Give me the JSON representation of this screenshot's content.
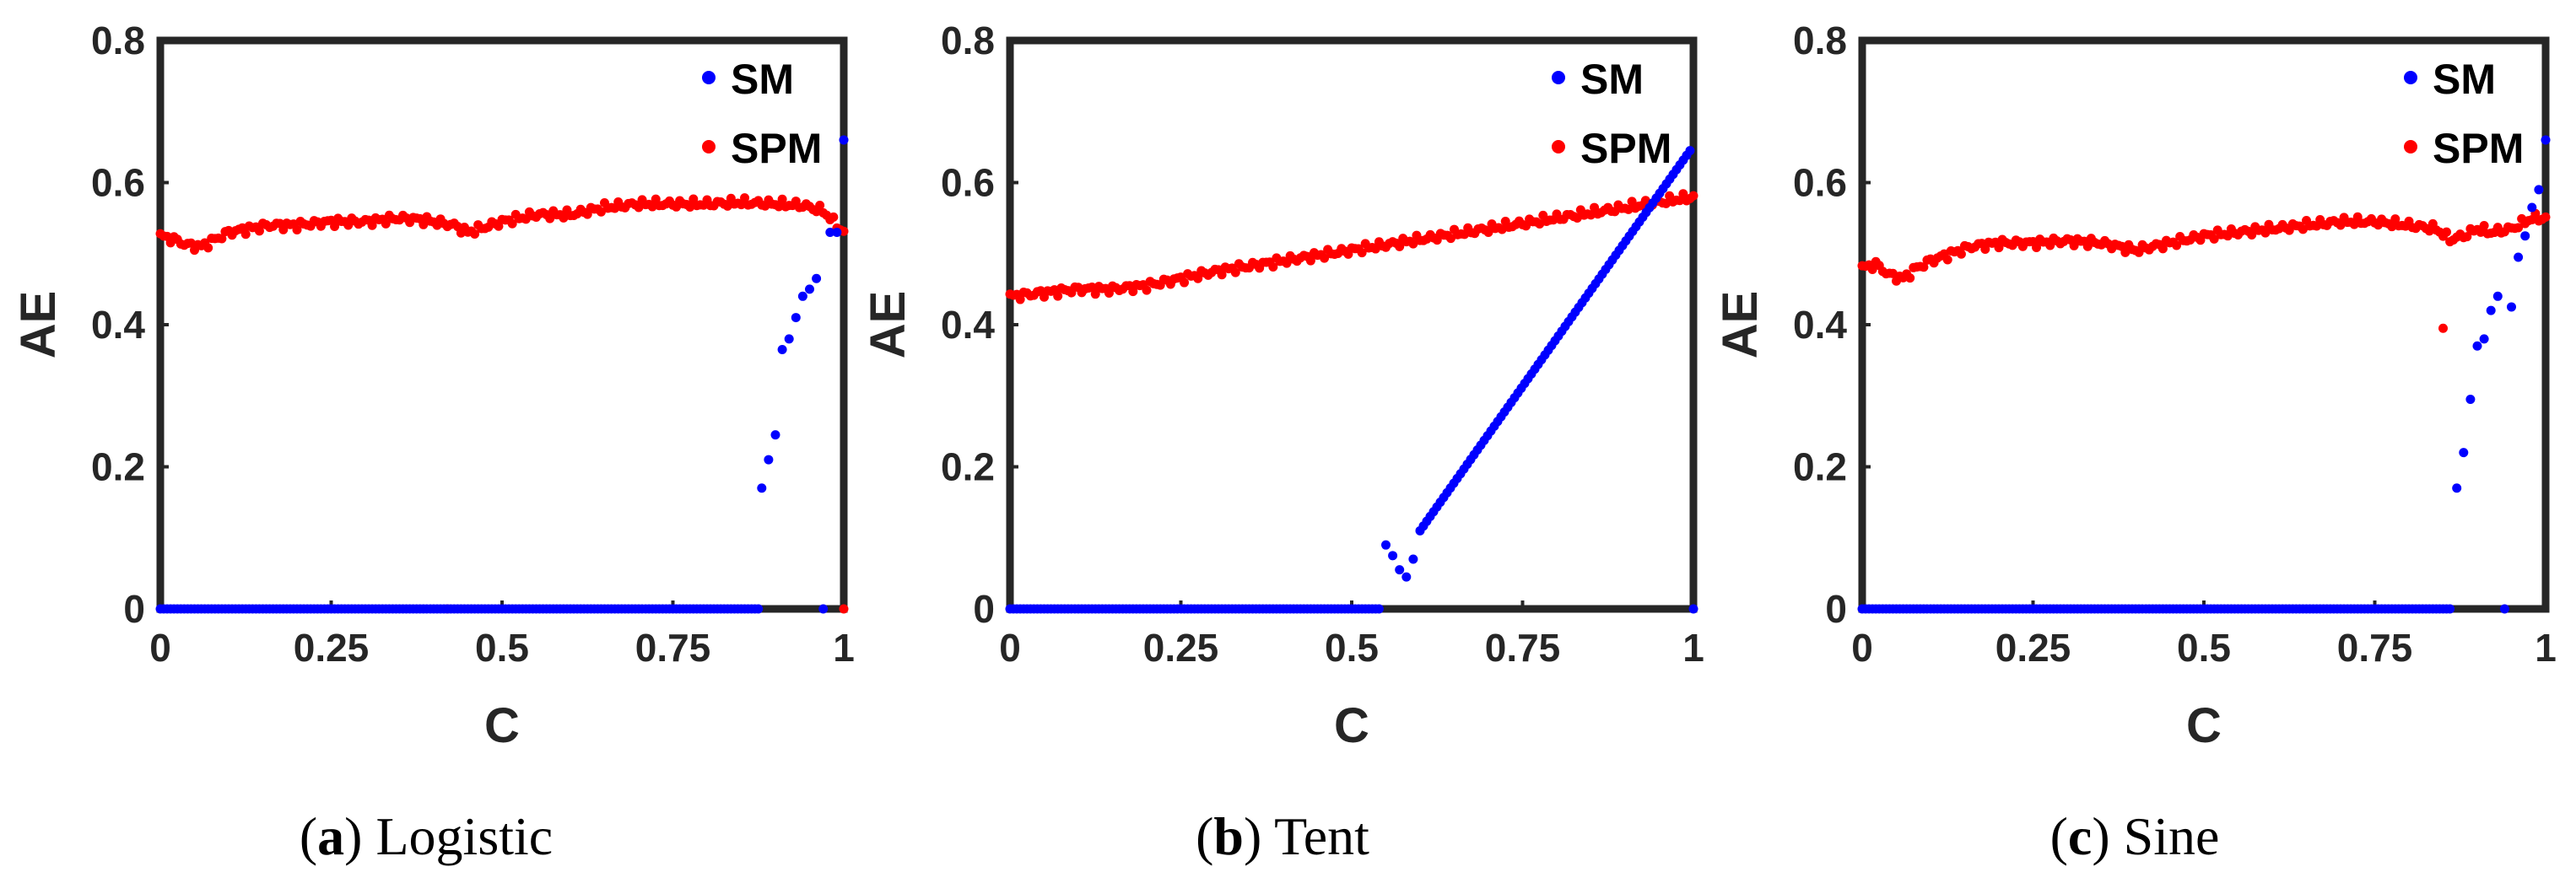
{
  "colors": {
    "SM": "#0000ff",
    "SPM": "#ff0000",
    "axis": "#262626"
  },
  "chart_data": [
    {
      "type": "scatter",
      "caption": {
        "letter": "a",
        "name": "Logistic"
      },
      "xlabel": "C",
      "ylabel": "AE",
      "xlim": [
        0,
        1
      ],
      "ylim": [
        0,
        0.8
      ],
      "xticks": [
        "0",
        "0.25",
        "0.5",
        "0.75",
        "1"
      ],
      "yticks": [
        "0",
        "0.2",
        "0.4",
        "0.6",
        "0.8"
      ],
      "legend": "top-right",
      "series": [
        {
          "name": "SM",
          "zero_range": [
            0,
            0.875
          ],
          "points": [
            [
              0.88,
              0.17
            ],
            [
              0.89,
              0.21
            ],
            [
              0.9,
              0.245
            ],
            [
              0.91,
              0.365
            ],
            [
              0.92,
              0.38
            ],
            [
              0.93,
              0.41
            ],
            [
              0.94,
              0.44
            ],
            [
              0.95,
              0.45
            ],
            [
              0.96,
              0.465
            ],
            [
              0.97,
              0.0
            ],
            [
              0.98,
              0.53
            ],
            [
              0.99,
              0.53
            ],
            [
              1.0,
              0.66
            ]
          ]
        },
        {
          "name": "SPM",
          "anchors": [
            [
              0,
              0.525
            ],
            [
              0.02,
              0.52
            ],
            [
              0.04,
              0.512
            ],
            [
              0.06,
              0.51
            ],
            [
              0.08,
              0.52
            ],
            [
              0.1,
              0.53
            ],
            [
              0.13,
              0.535
            ],
            [
              0.16,
              0.54
            ],
            [
              0.2,
              0.54
            ],
            [
              0.25,
              0.545
            ],
            [
              0.3,
              0.545
            ],
            [
              0.35,
              0.55
            ],
            [
              0.38,
              0.548
            ],
            [
              0.4,
              0.545
            ],
            [
              0.43,
              0.54
            ],
            [
              0.45,
              0.53
            ],
            [
              0.5,
              0.545
            ],
            [
              0.55,
              0.555
            ],
            [
              0.6,
              0.555
            ],
            [
              0.65,
              0.565
            ],
            [
              0.7,
              0.57
            ],
            [
              0.75,
              0.57
            ],
            [
              0.8,
              0.57
            ],
            [
              0.85,
              0.572
            ],
            [
              0.9,
              0.57
            ],
            [
              0.94,
              0.568
            ],
            [
              0.97,
              0.56
            ],
            [
              0.99,
              0.54
            ],
            [
              1,
              0.53
            ]
          ],
          "points": [
            [
              0.42,
              0.0
            ],
            [
              1.0,
              0.0
            ]
          ]
        }
      ]
    },
    {
      "type": "scatter",
      "caption": {
        "letter": "b",
        "name": "Tent"
      },
      "xlabel": "C",
      "ylabel": "AE",
      "xlim": [
        0,
        1
      ],
      "ylim": [
        0,
        0.8
      ],
      "xticks": [
        "0",
        "0.25",
        "0.5",
        "0.75",
        "1"
      ],
      "yticks": [
        "0",
        "0.2",
        "0.4",
        "0.6",
        "0.8"
      ],
      "legend": "top-right",
      "series": [
        {
          "name": "SM",
          "zero_range": [
            0,
            0.54
          ],
          "points": [
            [
              0.55,
              0.09
            ],
            [
              0.56,
              0.075
            ],
            [
              0.57,
              0.055
            ],
            [
              0.58,
              0.045
            ],
            [
              0.59,
              0.07
            ],
            [
              1.0,
              0.0
            ]
          ],
          "line": {
            "from": [
              0.6,
              0.11
            ],
            "to": [
              0.995,
              0.645
            ]
          }
        },
        {
          "name": "SPM",
          "anchors": [
            [
              0,
              0.44
            ],
            [
              0.05,
              0.445
            ],
            [
              0.1,
              0.45
            ],
            [
              0.15,
              0.45
            ],
            [
              0.2,
              0.455
            ],
            [
              0.25,
              0.465
            ],
            [
              0.3,
              0.475
            ],
            [
              0.4,
              0.49
            ],
            [
              0.5,
              0.505
            ],
            [
              0.6,
              0.52
            ],
            [
              0.7,
              0.535
            ],
            [
              0.8,
              0.55
            ],
            [
              0.9,
              0.565
            ],
            [
              1,
              0.58
            ]
          ],
          "points": []
        }
      ]
    },
    {
      "type": "scatter",
      "caption": {
        "letter": "c",
        "name": "Sine"
      },
      "xlabel": "C",
      "ylabel": "AE",
      "xlim": [
        0,
        1
      ],
      "ylim": [
        0,
        0.8
      ],
      "xticks": [
        "0",
        "0.25",
        "0.5",
        "0.75",
        "1"
      ],
      "yticks": [
        "0",
        "0.2",
        "0.4",
        "0.6",
        "0.8"
      ],
      "legend": "top-right",
      "series": [
        {
          "name": "SM",
          "zero_range": [
            0,
            0.86
          ],
          "points": [
            [
              0.87,
              0.17
            ],
            [
              0.88,
              0.22
            ],
            [
              0.89,
              0.295
            ],
            [
              0.9,
              0.37
            ],
            [
              0.91,
              0.38
            ],
            [
              0.92,
              0.42
            ],
            [
              0.93,
              0.44
            ],
            [
              0.94,
              0.0
            ],
            [
              0.95,
              0.425
            ],
            [
              0.96,
              0.495
            ],
            [
              0.97,
              0.525
            ],
            [
              0.98,
              0.565
            ],
            [
              0.99,
              0.59
            ],
            [
              1.0,
              0.66
            ]
          ]
        },
        {
          "name": "SPM",
          "anchors": [
            [
              0,
              0.48
            ],
            [
              0.02,
              0.485
            ],
            [
              0.04,
              0.47
            ],
            [
              0.06,
              0.465
            ],
            [
              0.08,
              0.48
            ],
            [
              0.1,
              0.49
            ],
            [
              0.13,
              0.5
            ],
            [
              0.16,
              0.51
            ],
            [
              0.2,
              0.515
            ],
            [
              0.25,
              0.515
            ],
            [
              0.3,
              0.518
            ],
            [
              0.35,
              0.515
            ],
            [
              0.4,
              0.505
            ],
            [
              0.45,
              0.515
            ],
            [
              0.5,
              0.525
            ],
            [
              0.55,
              0.53
            ],
            [
              0.6,
              0.535
            ],
            [
              0.65,
              0.54
            ],
            [
              0.7,
              0.545
            ],
            [
              0.75,
              0.545
            ],
            [
              0.8,
              0.54
            ],
            [
              0.84,
              0.535
            ],
            [
              0.86,
              0.52
            ],
            [
              0.88,
              0.525
            ],
            [
              0.9,
              0.535
            ],
            [
              0.92,
              0.53
            ],
            [
              0.95,
              0.535
            ],
            [
              0.98,
              0.55
            ],
            [
              1,
              0.55
            ]
          ],
          "points": [
            [
              0.85,
              0.395
            ]
          ]
        }
      ]
    }
  ]
}
